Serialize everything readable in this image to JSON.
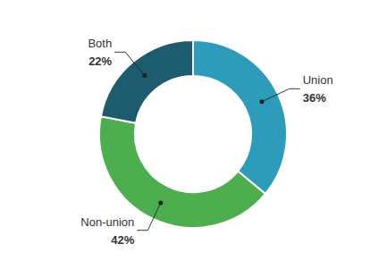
{
  "chart_data": {
    "type": "donut",
    "categories": [
      "Union",
      "Non-union",
      "Both"
    ],
    "values": [
      36,
      42,
      22
    ],
    "value_labels": [
      "36%",
      "42%",
      "22%"
    ],
    "colors": [
      "#2d9cbb",
      "#4cae4c",
      "#1d5c6e"
    ],
    "data_labels": true
  }
}
